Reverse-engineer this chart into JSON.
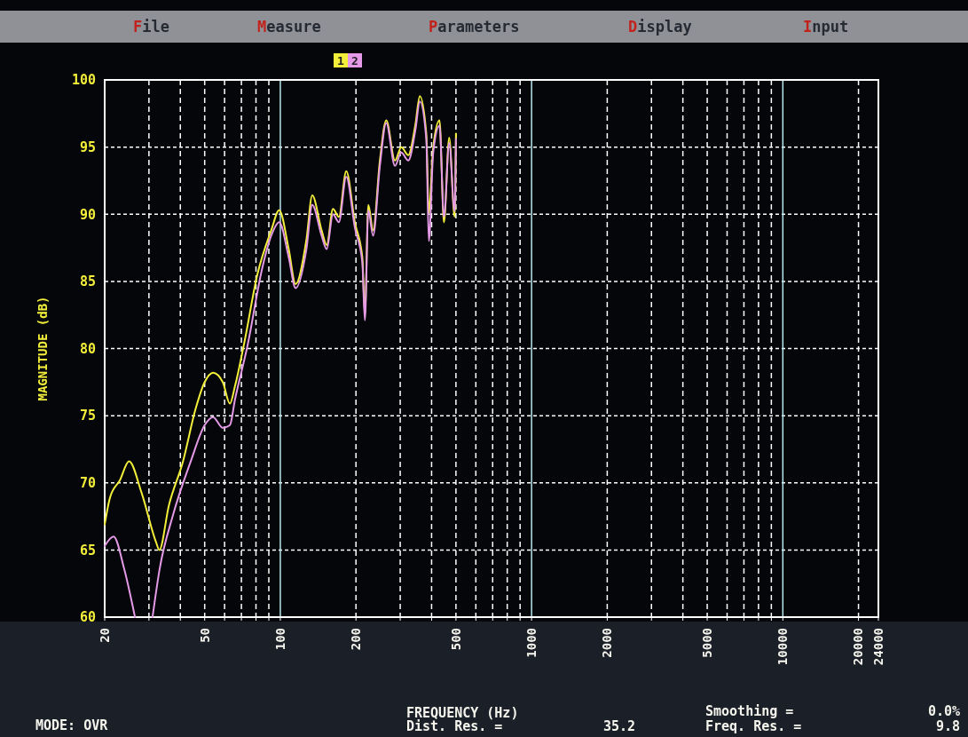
{
  "chart_data": {
    "type": "line",
    "xlabel": "FREQUENCY (Hz)",
    "ylabel": "MAGNITUDE (dB)",
    "log": "x",
    "grid": true,
    "legend": "top",
    "xlim": [
      20,
      24000
    ],
    "ylim": [
      60,
      100
    ],
    "xticks": [
      20,
      {
        "value": 30,
        "label": null
      },
      {
        "value": 40,
        "label": null
      },
      50,
      {
        "value": 60,
        "label": null
      },
      {
        "value": 70,
        "label": null
      },
      {
        "value": 80,
        "label": null
      },
      {
        "value": 90,
        "label": null
      },
      100,
      200,
      {
        "value": 300,
        "label": null
      },
      {
        "value": 400,
        "label": null
      },
      500,
      {
        "value": 600,
        "label": null
      },
      {
        "value": 700,
        "label": null
      },
      {
        "value": 800,
        "label": null
      },
      {
        "value": 900,
        "label": null
      },
      1000,
      2000,
      {
        "value": 3000,
        "label": null
      },
      {
        "value": 4000,
        "label": null
      },
      5000,
      {
        "value": 6000,
        "label": null
      },
      {
        "value": 7000,
        "label": null
      },
      {
        "value": 8000,
        "label": null
      },
      {
        "value": 9000,
        "label": null
      },
      10000,
      20000,
      24000
    ],
    "yticks": [
      60,
      65,
      70,
      75,
      80,
      85,
      90,
      95,
      100
    ],
    "series": [
      {
        "name": "1",
        "color": "#f2ee3a",
        "x": [
          20,
          21,
          23,
          25,
          28,
          32,
          33,
          36,
          41,
          46,
          50,
          54,
          59,
          63,
          66,
          72,
          81,
          92,
          99,
          108,
          115,
          127,
          134,
          146,
          153,
          162,
          171,
          183,
          198,
          212,
          217,
          224,
          234,
          249,
          264,
          286,
          303,
          323,
          345,
          359,
          381,
          390,
          406,
          430,
          448,
          470,
          494,
          500
        ],
        "values": [
          66.9,
          68.9,
          70.2,
          71.6,
          69.3,
          65.6,
          65,
          68.3,
          71.6,
          75.5,
          77.5,
          78.2,
          77.5,
          75.9,
          77.2,
          80.5,
          85.5,
          88.8,
          90.3,
          87.4,
          84.8,
          88.1,
          91.4,
          88.8,
          87.7,
          90.4,
          89.8,
          93.2,
          89.4,
          86.8,
          82.5,
          90.7,
          88.8,
          94,
          97,
          94,
          95,
          94.4,
          96.7,
          98.8,
          96,
          90.1,
          95,
          97,
          89.4,
          95.7,
          89.8,
          96
        ]
      },
      {
        "name": "2",
        "color": "#e49ae6",
        "x": [
          20,
          21.7,
          23.9,
          26.4,
          27,
          30,
          31,
          33.1,
          37.4,
          44,
          50,
          54,
          59,
          63,
          66,
          74,
          85,
          92,
          99,
          108,
          115,
          127,
          134,
          146,
          153,
          162,
          171,
          183,
          198,
          212,
          217,
          224,
          234,
          249,
          264,
          286,
          303,
          323,
          345,
          359,
          381,
          390,
          406,
          430,
          448,
          470,
          494,
          500
        ],
        "values": [
          65.3,
          66,
          63.6,
          60,
          null,
          null,
          60,
          63.6,
          67.6,
          71.6,
          74.3,
          74.9,
          74.1,
          74.3,
          76.2,
          80.2,
          86.1,
          88.4,
          89.4,
          86.8,
          84.5,
          87.4,
          90.7,
          88.4,
          87.4,
          90,
          89.4,
          92.8,
          89,
          86.4,
          82.1,
          90.3,
          88.4,
          93.6,
          96.8,
          93.6,
          94.6,
          94,
          96.3,
          98.4,
          95.6,
          88,
          94.6,
          96.6,
          89.8,
          95.3,
          90.2,
          95.6
        ]
      }
    ],
    "annotations": [
      "File",
      "Measure",
      "Parameters",
      "Display",
      "Input",
      "MODE: OVR",
      "Dist. Res. =",
      "35.2",
      "Smoothing =",
      "0.0%",
      "Freq. Res. =",
      "9.8"
    ]
  }
}
